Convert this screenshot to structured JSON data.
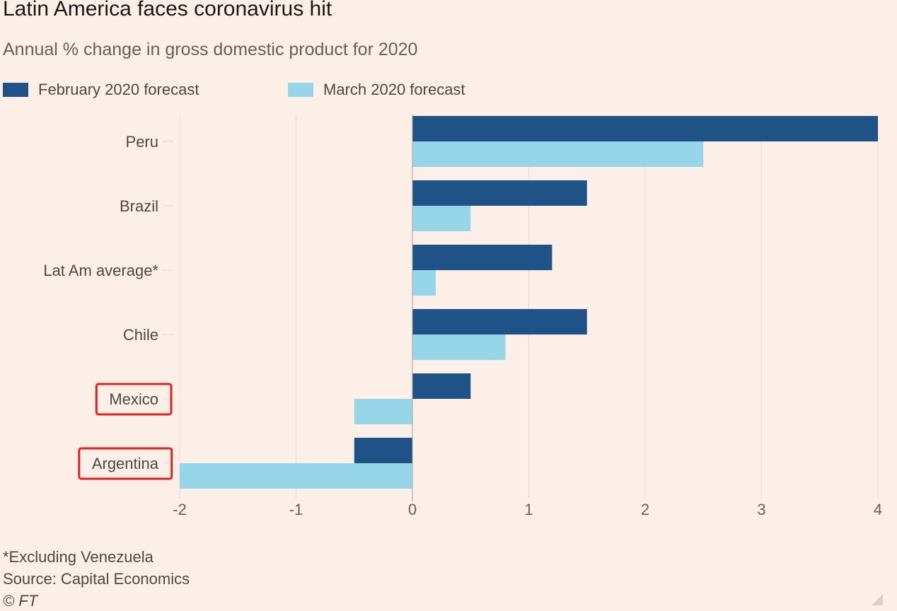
{
  "title": "Latin America faces coronavirus hit",
  "subtitle": "Annual % change in gross domestic product for 2020",
  "footnotes": {
    "note": "*Excluding Venezuela",
    "source": "Source: Capital Economics",
    "credit": "© FT"
  },
  "colors": {
    "background": "#fcefe8",
    "february": "#1f5287",
    "march": "#96d6e8",
    "highlight": "#e0201b",
    "grid": "#e3dcd7",
    "text": "#4d4845"
  },
  "highlighted_categories": [
    "Mexico",
    "Argentina"
  ],
  "chart_data": {
    "type": "bar",
    "orientation": "horizontal",
    "title": "Latin America faces coronavirus hit",
    "subtitle": "Annual % change in gross domestic product for 2020",
    "xlabel": "",
    "ylabel": "",
    "categories": [
      "Peru",
      "Brazil",
      "Lat Am average*",
      "Chile",
      "Mexico",
      "Argentina"
    ],
    "series": [
      {
        "name": "February 2020 forecast",
        "color": "#1f5287",
        "values": [
          4.0,
          1.5,
          1.2,
          1.5,
          0.5,
          -0.5
        ]
      },
      {
        "name": "March 2020 forecast",
        "color": "#96d6e8",
        "values": [
          2.5,
          0.5,
          0.2,
          0.8,
          -0.5,
          -2.0
        ]
      }
    ],
    "xlim": [
      -2,
      4
    ],
    "xticks": [
      -2,
      -1,
      0,
      1,
      2,
      3,
      4
    ],
    "grid": true,
    "legend": "top-left"
  }
}
